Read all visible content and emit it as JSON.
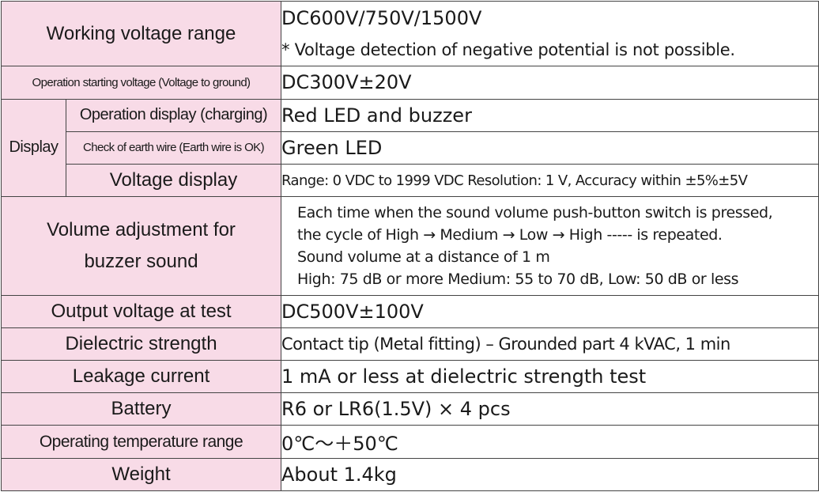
{
  "rows": {
    "working_voltage": {
      "label": "Working voltage range",
      "value": "DC600V/750V/1500V",
      "note": "* Voltage detection of negative potential is not possible."
    },
    "operation_starting_voltage": {
      "label": "Operation starting voltage (Voltage to ground)",
      "value": "DC300V±20V"
    },
    "display": {
      "label": "Display",
      "sub": [
        {
          "label": "Operation display (charging)",
          "value": "Red LED and buzzer"
        },
        {
          "label": "Check of earth wire (Earth wire is OK)",
          "value": "Green LED"
        },
        {
          "label": "Voltage display",
          "value": "Range: 0 VDC to 1999 VDC Resolution: 1 V, Accuracy within ±5%±5V"
        }
      ]
    },
    "volume_adjustment": {
      "label_line1": "Volume adjustment for",
      "label_line2": "buzzer sound",
      "lines": [
        "Each time when the sound volume push-button switch is pressed,",
        "the cycle of High → Medium → Low → High ----- is repeated.",
        "Sound volume at a distance of 1 m",
        "High: 75 dB or more Medium: 55 to 70 dB, Low: 50 dB or less"
      ]
    },
    "output_voltage": {
      "label": "Output voltage at test",
      "value": "DC500V±100V"
    },
    "dielectric_strength": {
      "label": "Dielectric strength",
      "value": "Contact tip (Metal fitting) – Grounded part 4 kVAC, 1 min"
    },
    "leakage_current": {
      "label": "Leakage current",
      "value": "1 mA or less at dielectric strength test"
    },
    "battery": {
      "label": "Battery",
      "value": "R6 or LR6(1.5V) × 4 pcs"
    },
    "operating_temperature": {
      "label": "Operating temperature range",
      "value": "0℃～＋50℃"
    },
    "weight": {
      "label": "Weight",
      "value": "About 1.4kg"
    }
  },
  "colors": {
    "label_bg": "#f8dbe7",
    "border": "#444444",
    "value_bg": "#ffffff"
  }
}
